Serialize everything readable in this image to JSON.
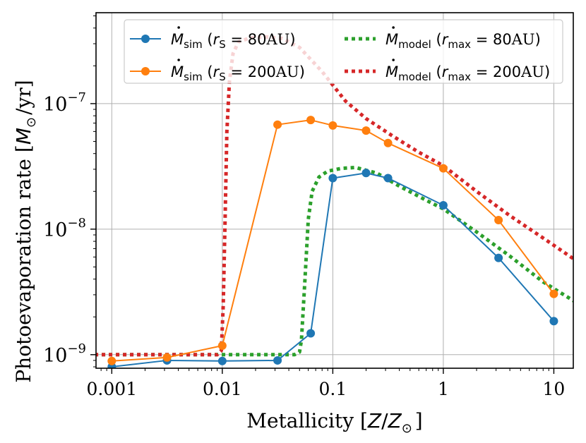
{
  "chart_data": {
    "type": "line",
    "xscale": "log",
    "yscale": "log",
    "xlim": [
      0.00072,
      15
    ],
    "ylim": [
      7.8e-10,
      5.3e-07
    ],
    "grid": true,
    "xlabel": "Metallicity [Z/Z⊙]",
    "xlabel_parts": {
      "pre": "Metallicity [",
      "z": "Z",
      "slash": "/",
      "zsun": "Z",
      "sun": "⊙",
      "post": "]"
    },
    "ylabel": "Photoevaporation rate [M⊙/yr]",
    "ylabel_parts": {
      "pre": "Photoevaporation rate [",
      "m": "M",
      "sun": "⊙",
      "post": "/yr]"
    },
    "x_ticks": [
      {
        "value": 0.001,
        "label": "0.001"
      },
      {
        "value": 0.01,
        "label": "0.01"
      },
      {
        "value": 0.1,
        "label": "0.1"
      },
      {
        "value": 1,
        "label": "1"
      },
      {
        "value": 10,
        "label": "10"
      }
    ],
    "y_ticks": [
      {
        "value": 1e-09,
        "base": "10",
        "exp": "−9"
      },
      {
        "value": 1e-08,
        "base": "10",
        "exp": "−8"
      },
      {
        "value": 1e-07,
        "base": "10",
        "exp": "−7"
      }
    ],
    "legend": {
      "position": "top",
      "entries": [
        {
          "name": "Ṁsim (rS = 80AU)",
          "series": "sim80",
          "style": "marker-line",
          "sym": "M",
          "sub": "sim",
          "rsym": "r",
          "rsub": "S",
          "val": " = 80",
          "unit": "AU"
        },
        {
          "name": "Ṁmodel (rmax = 80AU)",
          "series": "model80",
          "style": "dotted",
          "sym": "M",
          "sub": "model",
          "rsym": "r",
          "rsub": "max",
          "val": " = 80",
          "unit": "AU"
        },
        {
          "name": "Ṁsim (rS = 200AU)",
          "series": "sim200",
          "style": "marker-line",
          "sym": "M",
          "sub": "sim",
          "rsym": "r",
          "rsub": "S",
          "val": " = 200",
          "unit": "AU"
        },
        {
          "name": "Ṁmodel (rmax = 200AU)",
          "series": "model200",
          "style": "dotted",
          "sym": "M",
          "sub": "model",
          "rsym": "r",
          "rsub": "max",
          "val": " = 200",
          "unit": "AU"
        }
      ]
    },
    "series": [
      {
        "id": "sim80",
        "name": "Ṁsim (rS = 80AU)",
        "color": "#1f77b4",
        "style": "marker-line",
        "x": [
          0.001,
          0.00316,
          0.01,
          0.0316,
          0.0631,
          0.1,
          0.2,
          0.316,
          1,
          3.16,
          10
        ],
        "y": [
          8e-10,
          9e-10,
          8.9e-10,
          9e-10,
          1.48e-09,
          2.55e-08,
          2.8e-08,
          2.55e-08,
          1.55e-08,
          5.9e-09,
          1.85e-09
        ]
      },
      {
        "id": "sim200",
        "name": "Ṁsim (rS = 200AU)",
        "color": "#ff7f0e",
        "style": "marker-line",
        "x": [
          0.001,
          0.00316,
          0.01,
          0.0316,
          0.0631,
          0.1,
          0.2,
          0.316,
          1,
          3.16,
          10
        ],
        "y": [
          8.9e-10,
          9.5e-10,
          1.18e-09,
          6.8e-08,
          7.4e-08,
          6.7e-08,
          6.1e-08,
          4.85e-08,
          3.05e-08,
          1.18e-08,
          3.05e-09
        ]
      },
      {
        "id": "model80",
        "name": "Ṁmodel (rmax = 80AU)",
        "color": "#2ca02c",
        "style": "dotted",
        "x": [
          0.0007,
          0.01,
          0.03,
          0.045,
          0.05,
          0.052,
          0.056,
          0.06,
          0.065,
          0.075,
          0.09,
          0.12,
          0.16,
          0.25,
          0.4,
          0.7,
          1,
          2,
          4,
          8,
          16
        ],
        "y": [
          1e-09,
          1e-09,
          1e-09,
          1e-09,
          1.05e-09,
          1.3e-09,
          4e-09,
          1.2e-08,
          2e-08,
          2.6e-08,
          2.9e-08,
          3.05e-08,
          3.1e-08,
          2.8e-08,
          2.2e-08,
          1.7e-08,
          1.45e-08,
          9.5e-09,
          6.1e-09,
          3.8e-09,
          2.6e-09
        ]
      },
      {
        "id": "model200",
        "name": "Ṁmodel (rmax = 200AU)",
        "color": "#d62728",
        "style": "dotted",
        "x": [
          0.0007,
          0.009,
          0.0098,
          0.0102,
          0.0106,
          0.011,
          0.0116,
          0.0125,
          0.014,
          0.018,
          0.025,
          0.035,
          0.05,
          0.08,
          0.13,
          0.2,
          0.35,
          0.6,
          1,
          2,
          4,
          8,
          16
        ],
        "y": [
          1e-09,
          1e-09,
          1.08e-09,
          2.5e-09,
          1.2e-08,
          6e-08,
          1.5e-07,
          2.5e-07,
          3.1e-07,
          3.35e-07,
          3.4e-07,
          3.3e-07,
          2.8e-07,
          1.8e-07,
          1.05e-07,
          7.6e-08,
          5.5e-08,
          4.1e-08,
          3.2e-08,
          2e-08,
          1.28e-08,
          8.5e-09,
          5.6e-09
        ]
      }
    ]
  }
}
